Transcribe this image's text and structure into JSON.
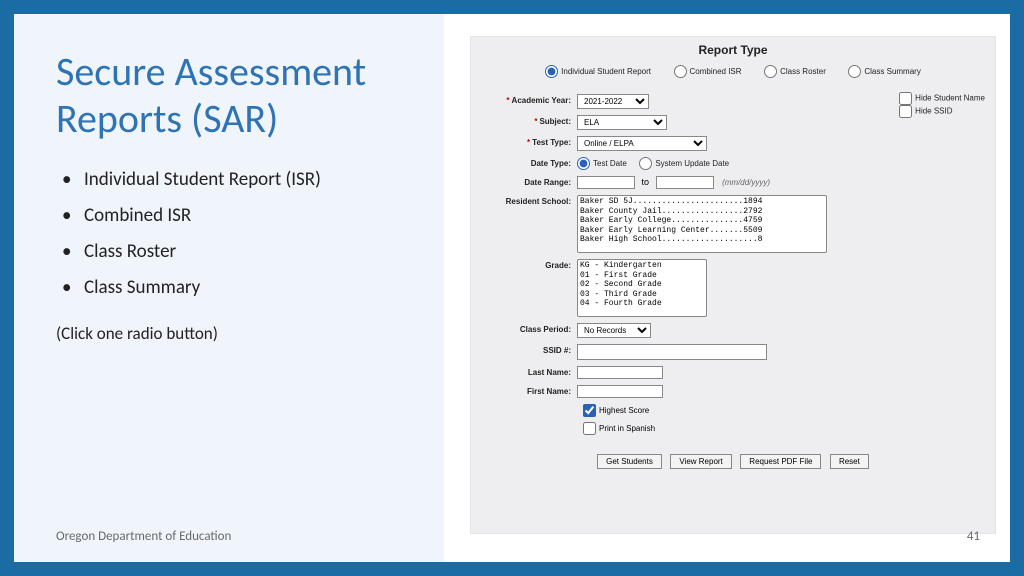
{
  "slide": {
    "title": "Secure Assessment Reports (SAR)",
    "bullets": [
      "Individual Student Report (ISR)",
      "Combined ISR",
      "Class Roster",
      "Class Summary"
    ],
    "hint": "(Click one radio button)",
    "footer": "Oregon Department of Education",
    "page_number": "41"
  },
  "form": {
    "title": "Report Type",
    "report_types": [
      "Individual Student Report",
      "Combined ISR",
      "Class Roster",
      "Class Summary"
    ],
    "report_type_selected": 0,
    "labels": {
      "academic_year": "Academic Year:",
      "subject": "Subject:",
      "test_type": "Test Type:",
      "date_type": "Date Type:",
      "date_range": "Date Range:",
      "to": "to",
      "date_fmt": "(mm/dd/yyyy)",
      "resident_school": "Resident School:",
      "grade": "Grade:",
      "class_period": "Class Period:",
      "ssid": "SSID #:",
      "last_name": "Last Name:",
      "first_name": "First Name:",
      "hide_student_name": "Hide Student Name",
      "hide_ssid": "Hide SSID",
      "highest_score": "Highest Score",
      "print_spanish": "Print in Spanish"
    },
    "values": {
      "academic_year": "2021-2022",
      "subject": "ELA",
      "test_type": "Online / ELPA",
      "date_type_options": [
        "Test Date",
        "System Update Date"
      ],
      "date_type_selected": 0,
      "class_period": "No Records",
      "resident_schools": [
        "Baker SD 5J.......................1894",
        "Baker County Jail.................2792",
        "Baker Early College...............4759",
        "Baker Early Learning Center.......5509",
        "Baker High School....................8"
      ],
      "grades": [
        "KG - Kindergarten",
        "01 - First Grade",
        "02 - Second Grade",
        "03 - Third Grade",
        "04 - Fourth Grade"
      ]
    },
    "buttons": {
      "get_students": "Get Students",
      "view_report": "View Report",
      "request_pdf": "Request PDF File",
      "reset": "Reset"
    }
  },
  "colors": {
    "frame": "#1b6ba4",
    "left_bg": "#eff5fa",
    "heading": "#2e74b5",
    "form_bg": "#eeeef0"
  }
}
